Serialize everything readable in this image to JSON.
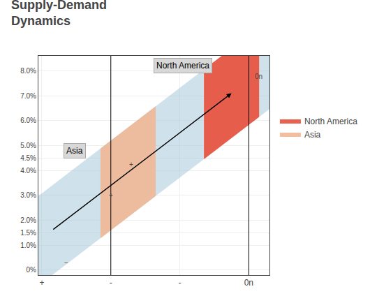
{
  "chart_data": {
    "type": "band",
    "title": "Supply-Demand\nDynamics",
    "arrow": {
      "start": [
        0.15,
        0.016
      ],
      "end": [
        2.75,
        0.071
      ]
    },
    "band_width": 0.018,
    "band_color": "#a8c8d8",
    "series": [
      {
        "name": "North America",
        "color": "#e8503a",
        "x": [
          2.35,
          3.15
        ]
      },
      {
        "name": "Asia",
        "color": "#f0b896",
        "x": [
          0.85,
          1.65
        ]
      }
    ],
    "vlines": [
      1,
      3
    ],
    "annotations": [
      "North America",
      "Asia",
      "+",
      "+",
      "−",
      "0n"
    ],
    "xlim": [
      -0.05,
      3.3
    ],
    "ylim": [
      -0.002,
      0.086
    ],
    "xticks": [
      {
        "value": 0,
        "label": "+"
      },
      {
        "value": 1,
        "label": "-"
      },
      {
        "value": 2,
        "label": "-"
      },
      {
        "value": 3,
        "label": "0n"
      }
    ],
    "yticks": [
      {
        "value": 0,
        "label": "0%"
      },
      {
        "value": 0.01,
        "label": "1.0%"
      },
      {
        "value": 0.015,
        "label": "1.5%"
      },
      {
        "value": 0.02,
        "label": "2.0%"
      },
      {
        "value": 0.03,
        "label": "3.0%"
      },
      {
        "value": 0.04,
        "label": "4.0%"
      },
      {
        "value": 0.045,
        "label": "4.5%"
      },
      {
        "value": 0.05,
        "label": "5.0%"
      },
      {
        "value": 0.06,
        "label": "6.0%"
      },
      {
        "value": 0.07,
        "label": "7.0%"
      },
      {
        "value": 0.08,
        "label": "8.0%"
      }
    ],
    "grid": true,
    "legend": "right"
  }
}
